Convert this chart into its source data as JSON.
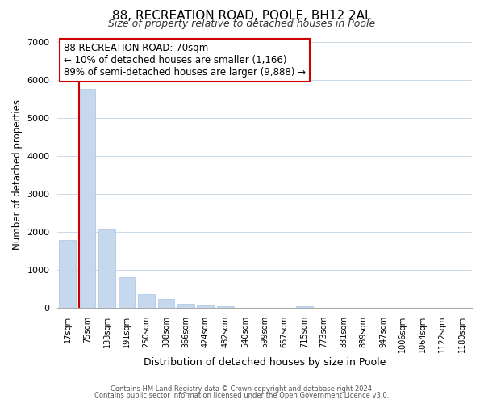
{
  "title": "88, RECREATION ROAD, POOLE, BH12 2AL",
  "subtitle": "Size of property relative to detached houses in Poole",
  "xlabel": "Distribution of detached houses by size in Poole",
  "ylabel": "Number of detached properties",
  "bar_color": "#c5d8ed",
  "bar_edge_color": "#a8c4e0",
  "bin_labels": [
    "17sqm",
    "75sqm",
    "133sqm",
    "191sqm",
    "250sqm",
    "308sqm",
    "366sqm",
    "424sqm",
    "482sqm",
    "540sqm",
    "599sqm",
    "657sqm",
    "715sqm",
    "773sqm",
    "831sqm",
    "889sqm",
    "947sqm",
    "1006sqm",
    "1064sqm",
    "1122sqm",
    "1180sqm"
  ],
  "bar_heights": [
    1780,
    5760,
    2060,
    820,
    370,
    230,
    115,
    65,
    40,
    0,
    0,
    0,
    50,
    0,
    0,
    0,
    0,
    0,
    0,
    0,
    0
  ],
  "ylim": [
    0,
    7000
  ],
  "yticks": [
    0,
    1000,
    2000,
    3000,
    4000,
    5000,
    6000,
    7000
  ],
  "vline_color": "#cc0000",
  "annotation_line1": "88 RECREATION ROAD: 70sqm",
  "annotation_line2": "← 10% of detached houses are smaller (1,166)",
  "annotation_line3": "89% of semi-detached houses are larger (9,888) →",
  "annotation_box_edge": "#cc0000",
  "annotation_fontsize": 8.5,
  "title_fontsize": 11,
  "subtitle_fontsize": 9,
  "xlabel_fontsize": 9,
  "ylabel_fontsize": 8.5,
  "footer_line1": "Contains HM Land Registry data © Crown copyright and database right 2024.",
  "footer_line2": "Contains public sector information licensed under the Open Government Licence v3.0.",
  "background_color": "#ffffff",
  "grid_color": "#ccd9e8"
}
